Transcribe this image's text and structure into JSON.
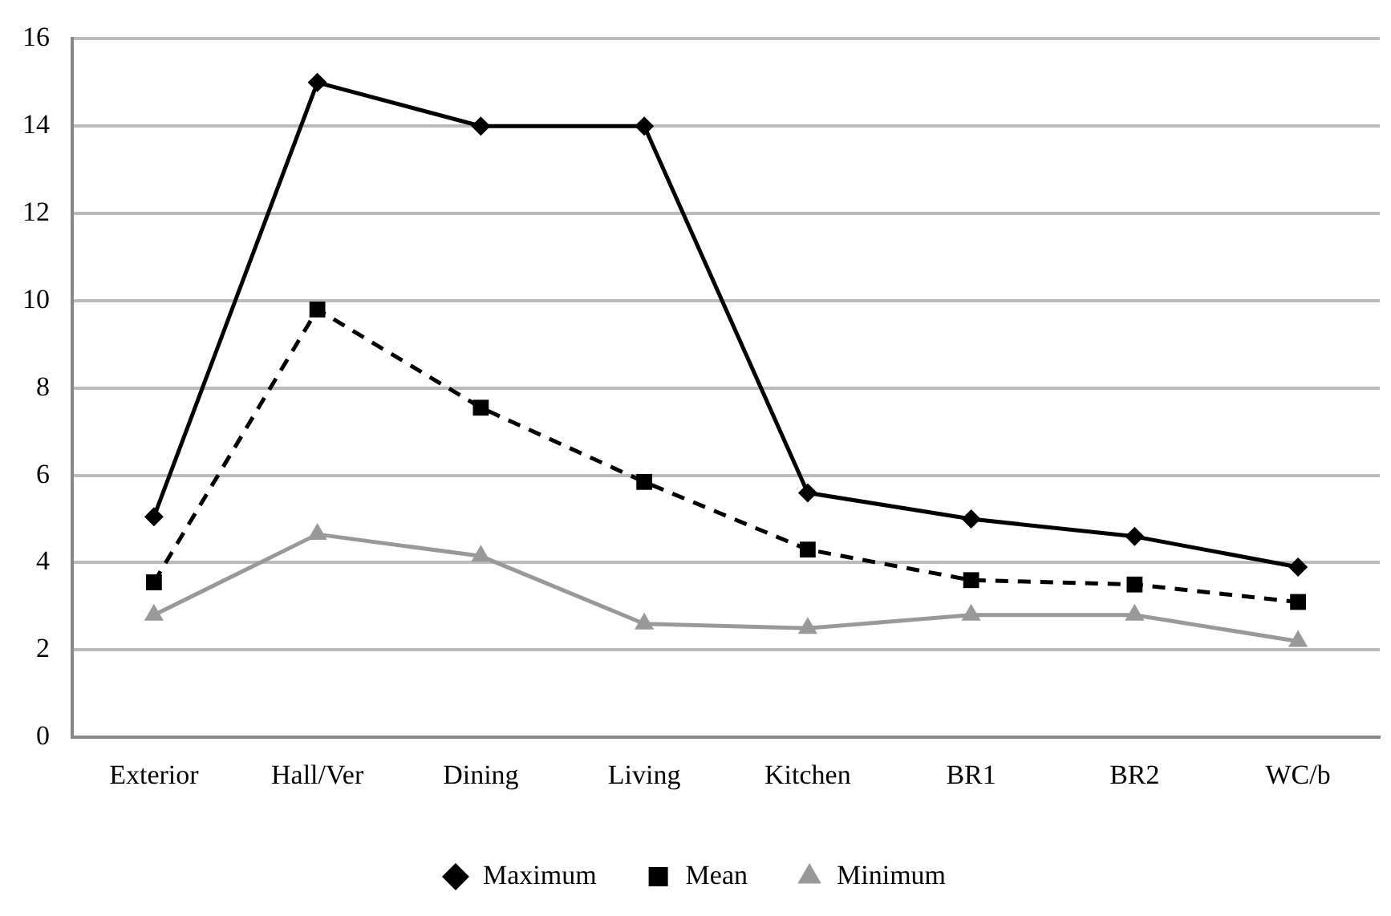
{
  "chart_data": {
    "type": "line",
    "categories": [
      "Exterior",
      "Hall/Ver",
      "Dining",
      "Living",
      "Kitchen",
      "BR1",
      "BR2",
      "WC/b"
    ],
    "series": [
      {
        "name": "Maximum",
        "color": "#000000",
        "marker": "diamond",
        "line_style": "solid",
        "values": [
          5.05,
          15,
          14,
          14,
          5.6,
          5.0,
          4.6,
          3.9
        ]
      },
      {
        "name": "Mean",
        "color": "#000000",
        "marker": "square",
        "line_style": "dashed",
        "values": [
          3.55,
          9.8,
          7.55,
          5.85,
          4.3,
          3.6,
          3.5,
          3.1
        ]
      },
      {
        "name": "Minimum",
        "color": "#999999",
        "marker": "triangle",
        "line_style": "solid",
        "values": [
          2.8,
          4.65,
          4.15,
          2.6,
          2.5,
          2.8,
          2.8,
          2.2
        ]
      }
    ],
    "ylim": [
      0,
      16
    ],
    "yticks": [
      0,
      2,
      4,
      6,
      8,
      10,
      12,
      14,
      16
    ],
    "grid": "y",
    "legend": "bottom"
  }
}
